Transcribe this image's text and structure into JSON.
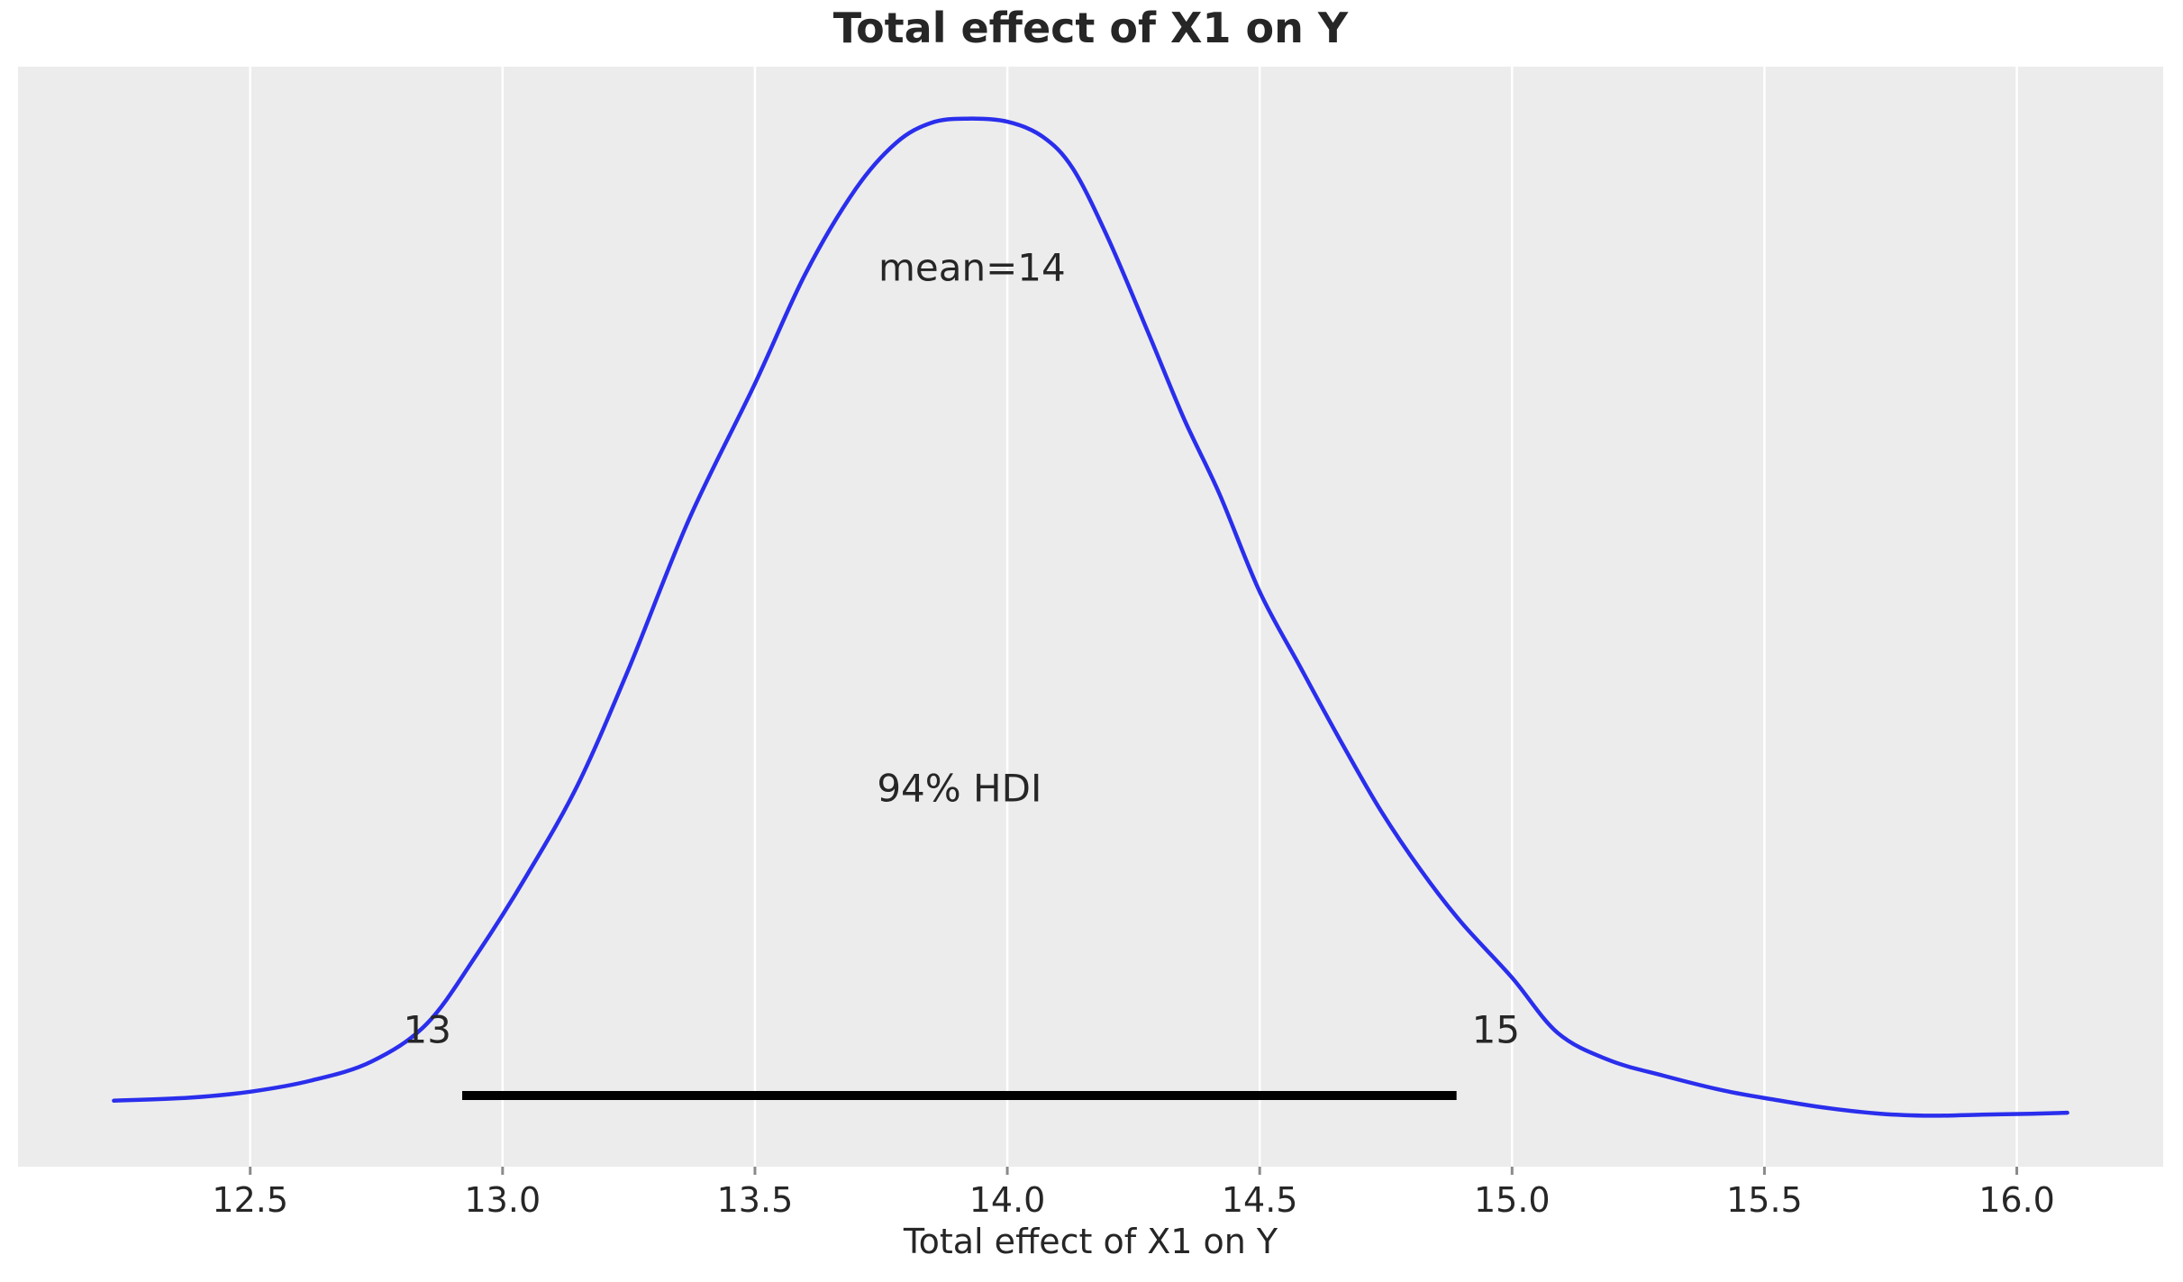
{
  "chart_data": {
    "type": "area",
    "subtype": "kde-posterior-density",
    "title": "Total effect of X1 on Y",
    "xlabel": "Total effect of X1 on Y",
    "ylabel": "",
    "legend": "none",
    "grid": "vertical-white-lines",
    "xlim": [
      12.04,
      16.29
    ],
    "ylim_density_norm": [
      -0.048,
      1.052
    ],
    "xticks": [
      12.5,
      13.0,
      13.5,
      14.0,
      14.5,
      15.0,
      15.5,
      16.0
    ],
    "xtick_labels": [
      "12.5",
      "13.0",
      "13.5",
      "14.0",
      "14.5",
      "15.0",
      "15.5",
      "16.0"
    ],
    "curve": {
      "x": [
        12.23,
        12.38,
        12.5,
        12.62,
        12.74,
        12.85,
        12.95,
        13.05,
        13.15,
        13.25,
        13.37,
        13.5,
        13.6,
        13.7,
        13.78,
        13.85,
        13.92,
        14.0,
        14.07,
        14.13,
        14.2,
        14.28,
        14.35,
        14.42,
        14.5,
        14.58,
        14.66,
        14.74,
        14.82,
        14.9,
        15.0,
        15.09,
        15.19,
        15.3,
        15.42,
        15.52,
        15.62,
        15.73,
        15.83,
        15.93,
        16.03,
        16.1
      ],
      "density_norm": [
        0.018,
        0.021,
        0.027,
        0.038,
        0.057,
        0.095,
        0.165,
        0.245,
        0.335,
        0.45,
        0.6,
        0.735,
        0.845,
        0.93,
        0.976,
        0.996,
        1.0,
        0.997,
        0.982,
        0.95,
        0.88,
        0.785,
        0.7,
        0.625,
        0.527,
        0.452,
        0.378,
        0.308,
        0.248,
        0.196,
        0.141,
        0.086,
        0.059,
        0.043,
        0.028,
        0.019,
        0.011,
        0.005,
        0.003,
        0.004,
        0.005,
        0.006
      ]
    },
    "mean": {
      "label": "mean=14",
      "value": 13.93
    },
    "hdi": {
      "prob_label": "94% HDI",
      "lower": 12.92,
      "upper": 14.89,
      "lower_label": "13",
      "upper_label": "15"
    },
    "colors": {
      "curve": "#2a2eec",
      "plot_background": "#ececec",
      "grid": "#ffffff",
      "hdi_line": "#000000",
      "text": "#262626",
      "tick_mark": "#8a8a8a"
    }
  }
}
